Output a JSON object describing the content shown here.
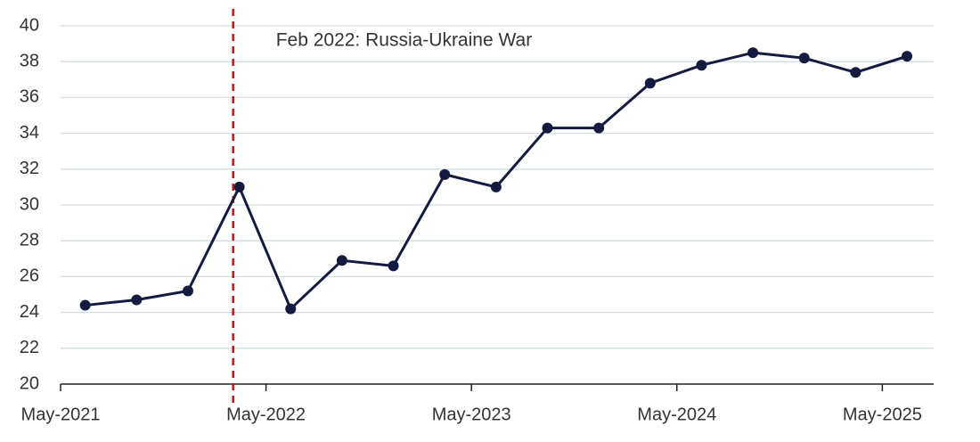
{
  "chart_data": {
    "type": "line",
    "x": [
      2021.45,
      2021.7,
      2021.95,
      2022.2,
      2022.45,
      2022.7,
      2022.95,
      2023.2,
      2023.45,
      2023.7,
      2023.95,
      2024.2,
      2024.45,
      2024.7,
      2024.95,
      2025.2,
      2025.45
    ],
    "series": [
      {
        "color": "#141a40",
        "values": [
          24.4,
          24.7,
          25.2,
          31.0,
          24.2,
          26.9,
          26.6,
          31.7,
          31.0,
          34.3,
          34.3,
          36.8,
          37.8,
          38.5,
          38.2,
          37.4,
          38.3
        ]
      }
    ],
    "xlim": [
      2021.33,
      2025.58
    ],
    "xticks": [
      {
        "value": 2021.33,
        "label": "May-2021"
      },
      {
        "value": 2022.33,
        "label": "May-2022"
      },
      {
        "value": 2023.33,
        "label": "May-2023"
      },
      {
        "value": 2024.33,
        "label": "May-2024"
      },
      {
        "value": 2025.33,
        "label": "May-2025"
      }
    ],
    "ylim": [
      20,
      40
    ],
    "yticks": [
      20,
      22,
      24,
      26,
      28,
      30,
      32,
      34,
      36,
      38,
      40
    ],
    "grid": true,
    "event_line": {
      "x": 2022.17,
      "label": "Feb 2022: Russia-Ukraine War",
      "color": "#b01c1c"
    }
  }
}
